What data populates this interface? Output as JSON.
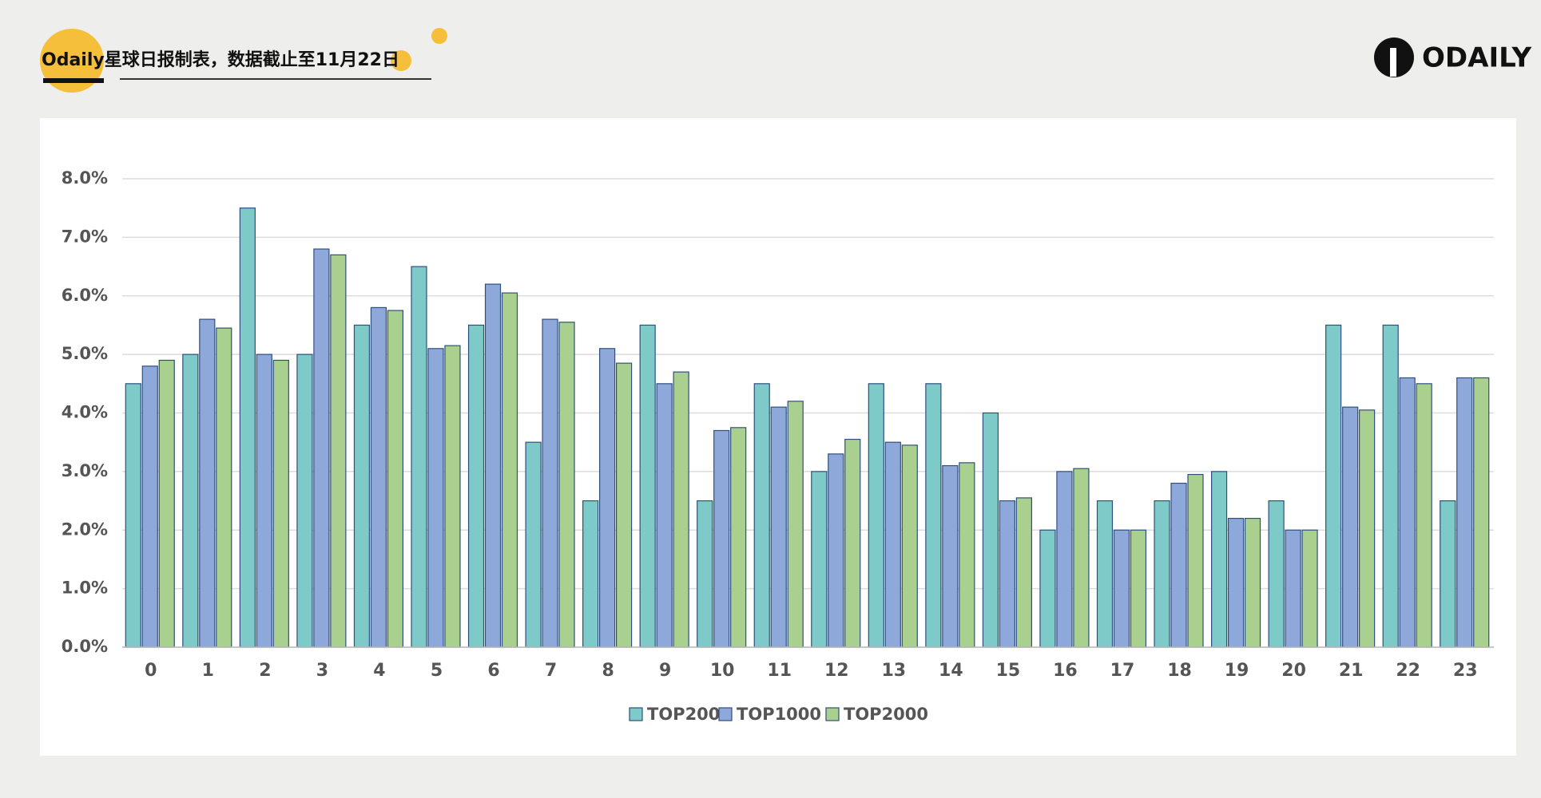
{
  "header": {
    "title": "Odaily星球日报制表，数据截止至11月22日",
    "logo": "ODAILY"
  },
  "chart_data": {
    "type": "bar",
    "categories": [
      "0",
      "1",
      "2",
      "3",
      "4",
      "5",
      "6",
      "7",
      "8",
      "9",
      "10",
      "11",
      "12",
      "13",
      "14",
      "15",
      "16",
      "17",
      "18",
      "19",
      "20",
      "21",
      "22",
      "23"
    ],
    "series": [
      {
        "name": "TOP200",
        "color": "#7ecac8",
        "values": [
          4.5,
          5.0,
          7.5,
          5.0,
          5.5,
          6.5,
          5.5,
          3.5,
          2.5,
          5.5,
          2.5,
          4.5,
          3.0,
          4.5,
          4.5,
          4.0,
          2.0,
          2.5,
          2.5,
          3.0,
          2.5,
          5.5,
          5.5,
          2.5
        ]
      },
      {
        "name": "TOP1000",
        "color": "#8fa8da",
        "values": [
          4.8,
          5.6,
          5.0,
          6.8,
          5.8,
          5.1,
          6.2,
          5.6,
          5.1,
          4.5,
          3.7,
          4.1,
          3.3,
          3.5,
          3.1,
          2.5,
          3.0,
          2.0,
          2.8,
          2.2,
          2.0,
          4.1,
          4.6,
          4.6
        ]
      },
      {
        "name": "TOP2000",
        "color": "#a9d08e",
        "values": [
          4.9,
          5.45,
          4.9,
          6.7,
          5.75,
          5.15,
          6.05,
          5.55,
          4.85,
          4.7,
          3.75,
          4.2,
          3.55,
          3.45,
          3.15,
          2.55,
          3.05,
          2.0,
          2.95,
          2.2,
          2.0,
          4.05,
          4.5,
          4.6
        ]
      }
    ],
    "ylim": [
      0,
      8
    ],
    "yticks": [
      {
        "value": 0,
        "label": "0.0%"
      },
      {
        "value": 1,
        "label": "1.0%"
      },
      {
        "value": 2,
        "label": "2.0%"
      },
      {
        "value": 3,
        "label": "3.0%"
      },
      {
        "value": 4,
        "label": "4.0%"
      },
      {
        "value": 5,
        "label": "5.0%"
      },
      {
        "value": 6,
        "label": "6.0%"
      },
      {
        "value": 7,
        "label": "7.0%"
      },
      {
        "value": 8,
        "label": "8.0%"
      }
    ],
    "grid": true,
    "legend": "bottom"
  }
}
